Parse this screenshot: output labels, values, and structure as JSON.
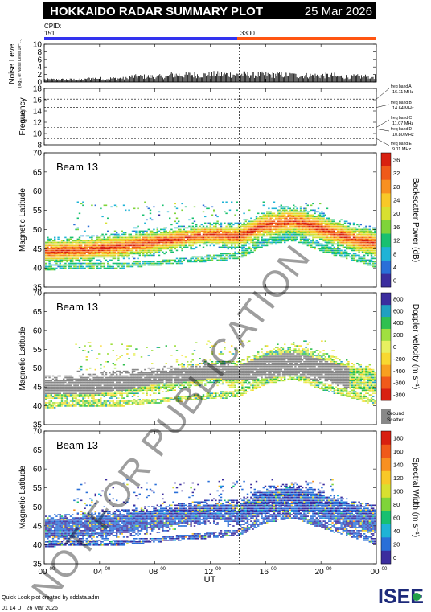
{
  "header": {
    "title": "HOKKAIDO RADAR SUMMARY PLOT",
    "date": "25 Mar 2026",
    "cpid_label": "CPID:",
    "cpid_values": [
      "151",
      "3300"
    ]
  },
  "footer": {
    "credit": "Quick Look plot created by sddata.adm",
    "timestamp": "01 14 UT 26 Mar 2026",
    "logo_text": "ISEE"
  },
  "watermark": "NOT FOR PUBLICATION",
  "colors": {
    "cpid_first": "#3333ee",
    "cpid_second": "#ff5511",
    "ground_scatter": "#888888"
  },
  "chart_data": [
    {
      "id": "noise",
      "type": "bar",
      "ylabel": "Noise Level",
      "ylabel_sub": "(log₁₀ of Noise Level 10^…)",
      "ylim": [
        0,
        10
      ],
      "yticks": [
        "0",
        "2",
        "4",
        "6",
        "8",
        "10"
      ],
      "xlim": [
        0,
        24
      ],
      "segments": [
        [
          0,
          3,
          0.7
        ],
        [
          3,
          6,
          1.0
        ],
        [
          6,
          9,
          1.5
        ],
        [
          9,
          12,
          2.0
        ],
        [
          12,
          15,
          2.1
        ],
        [
          15,
          18,
          2.0
        ],
        [
          18,
          21,
          1.8
        ],
        [
          21,
          24,
          1.5
        ]
      ]
    },
    {
      "id": "frequency",
      "type": "line",
      "ylabel": "Frequency",
      "ylabel_unit": "(MHz)",
      "ylim": [
        8,
        18
      ],
      "yticks": [
        "8",
        "10",
        "12",
        "14",
        "16",
        "18"
      ],
      "bands": [
        {
          "name": "freq band A",
          "mhz": 16.11,
          "text": "16.11 MHz"
        },
        {
          "name": "freq band B",
          "mhz": 14.64,
          "text": "14.64 MHz"
        },
        {
          "name": "freq band C",
          "mhz": 11.07,
          "text": "11.07 MHz"
        },
        {
          "name": "freq band D",
          "mhz": 10.8,
          "text": "10.80 MHz"
        },
        {
          "name": "freq band E",
          "mhz": 9.11,
          "text": "9.11 MHz"
        }
      ]
    },
    {
      "id": "power",
      "type": "heatmap",
      "beam_label": "Beam 13",
      "ylabel": "Magnetic Latitude",
      "ylim": [
        35,
        70
      ],
      "yticks": [
        "35",
        "40",
        "45",
        "50",
        "55",
        "60",
        "65",
        "70"
      ],
      "colorbar_label": "Backscatter Power (dB)",
      "colorbar_ticks": [
        "0",
        "4",
        "8",
        "12",
        "16",
        "20",
        "24",
        "28",
        "32",
        "36"
      ],
      "colorscale": [
        "#3b2d9e",
        "#2a6fd8",
        "#1fb3d6",
        "#18c070",
        "#7fd43a",
        "#d8e030",
        "#f8c828",
        "#f89020",
        "#f05a1a",
        "#d82010"
      ]
    },
    {
      "id": "velocity",
      "type": "heatmap",
      "beam_label": "Beam 13",
      "ylabel": "Magnetic Latitude",
      "ylim": [
        35,
        70
      ],
      "yticks": [
        "35",
        "40",
        "45",
        "50",
        "55",
        "60",
        "65",
        "70"
      ],
      "colorbar_label": "Doppler Velocity (m s⁻¹)",
      "colorbar_ticks": [
        "-800",
        "-600",
        "-400",
        "-200",
        "0",
        "200",
        "400",
        "600",
        "800"
      ],
      "colorscale": [
        "#d82010",
        "#f05a1a",
        "#f8a020",
        "#f8d830",
        "#e8f060",
        "#a0e040",
        "#30c050",
        "#20a0c0",
        "#3b2d9e"
      ],
      "ground_scatter_label": [
        "Ground",
        "Scatter"
      ]
    },
    {
      "id": "width",
      "type": "heatmap",
      "beam_label": "Beam 13",
      "ylabel": "Magnetic Latitude",
      "ylim": [
        35,
        70
      ],
      "yticks": [
        "35",
        "40",
        "45",
        "50",
        "55",
        "60",
        "65",
        "70"
      ],
      "colorbar_label": "Spectral Width (m s⁻¹)",
      "colorbar_ticks": [
        "0",
        "20",
        "40",
        "60",
        "80",
        "100",
        "120",
        "140",
        "160",
        "180"
      ],
      "colorscale": [
        "#3b2d9e",
        "#2a6fd8",
        "#1fb3d6",
        "#18c070",
        "#7fd43a",
        "#d8e030",
        "#f8c828",
        "#f89020",
        "#f05a1a",
        "#d82010"
      ]
    }
  ],
  "xaxis": {
    "label": "UT",
    "xlim": [
      0,
      24
    ],
    "ticks": [
      {
        "value": 0,
        "major": "00",
        "sup": "00"
      },
      {
        "value": 4,
        "major": "04",
        "sup": "00"
      },
      {
        "value": 8,
        "major": "08",
        "sup": "00"
      },
      {
        "value": 12,
        "major": "12",
        "sup": "00"
      },
      {
        "value": 16,
        "major": "16",
        "sup": "00"
      },
      {
        "value": 20,
        "major": "20",
        "sup": "00"
      },
      {
        "value": 24,
        "major": "00",
        "sup": "00"
      }
    ],
    "mode_change_ut": 14.1
  },
  "scatter_model": {
    "note_bands": "center latitude and half-width of the main echo band vs UT",
    "main_band": [
      [
        0,
        44,
        2.5
      ],
      [
        3,
        44.5,
        2.5
      ],
      [
        6,
        45.5,
        2.5
      ],
      [
        8,
        46.5,
        2.5
      ],
      [
        10,
        47.5,
        2
      ],
      [
        12,
        48.5,
        2
      ],
      [
        14,
        48,
        2.5
      ],
      [
        16,
        51,
        3
      ],
      [
        18,
        52,
        3
      ],
      [
        20,
        50,
        3
      ],
      [
        22,
        47.5,
        3
      ],
      [
        24,
        46,
        3
      ]
    ],
    "lower_band": [
      [
        0,
        40,
        0.8
      ],
      [
        6,
        40.5,
        0.8
      ],
      [
        8,
        41,
        0.6
      ],
      [
        14,
        43,
        1
      ],
      [
        16,
        46.5,
        1
      ],
      [
        18,
        48,
        1.2
      ],
      [
        20,
        45,
        1
      ],
      [
        24,
        40.5,
        0.8
      ]
    ],
    "ground_band": [
      [
        0,
        46,
        3
      ],
      [
        4,
        46,
        3
      ],
      [
        6,
        47,
        3
      ],
      [
        8,
        48,
        2.5
      ],
      [
        10,
        48,
        2
      ],
      [
        12,
        49,
        2
      ],
      [
        14,
        48.5,
        2
      ],
      [
        16,
        50,
        3
      ],
      [
        18,
        51,
        3
      ],
      [
        20,
        49,
        3
      ],
      [
        22,
        47,
        3
      ],
      [
        24,
        46.5,
        3
      ]
    ]
  }
}
